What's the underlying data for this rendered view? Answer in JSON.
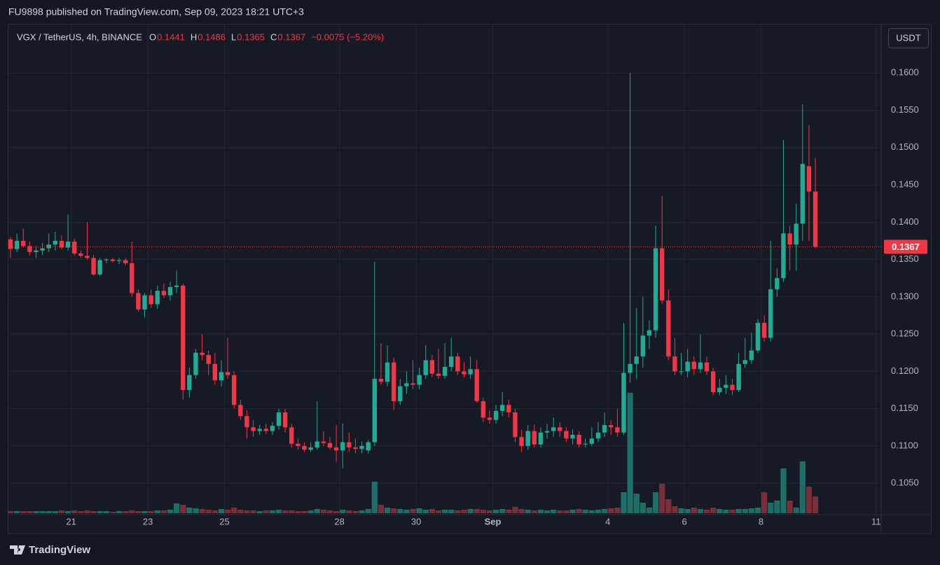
{
  "header": {
    "text": "FU9898 published on TradingView.com, Sep 09, 2023 18:21 UTC+3"
  },
  "chart_data": {
    "type": "candlestick",
    "title": "VGX / TetherUS, 4h, BINANCE",
    "ohlc_labels": [
      "O",
      "H",
      "L",
      "C"
    ],
    "change_label": "−0.0075 (−5.20%)",
    "currency": "USDT",
    "ohlc": [
      [
        0.1377,
        0.138,
        0.1352,
        0.1364
      ],
      [
        0.1364,
        0.1385,
        0.136,
        0.1375
      ],
      [
        0.1375,
        0.1392,
        0.1366,
        0.1368
      ],
      [
        0.1368,
        0.1374,
        0.1355,
        0.136
      ],
      [
        0.136,
        0.1368,
        0.1352,
        0.1362
      ],
      [
        0.1362,
        0.1372,
        0.1356,
        0.1365
      ],
      [
        0.1365,
        0.1385,
        0.136,
        0.137
      ],
      [
        0.137,
        0.1387,
        0.1362,
        0.1375
      ],
      [
        0.1375,
        0.1382,
        0.1364,
        0.1366
      ],
      [
        0.1366,
        0.141,
        0.1362,
        0.1374
      ],
      [
        0.1374,
        0.1378,
        0.1355,
        0.1358
      ],
      [
        0.1358,
        0.1362,
        0.1352,
        0.1355
      ],
      [
        0.1355,
        0.14,
        0.135,
        0.1352
      ],
      [
        0.1352,
        0.1356,
        0.1328,
        0.133
      ],
      [
        0.133,
        0.1352,
        0.1328,
        0.1349
      ],
      [
        0.1349,
        0.1352,
        0.1345,
        0.135
      ],
      [
        0.135,
        0.1352,
        0.1346,
        0.1348
      ],
      [
        0.1348,
        0.1352,
        0.1344,
        0.1349
      ],
      [
        0.1349,
        0.1352,
        0.1342,
        0.1345
      ],
      [
        0.1345,
        0.1374,
        0.13,
        0.1305
      ],
      [
        0.1305,
        0.131,
        0.128,
        0.1283
      ],
      [
        0.1283,
        0.1305,
        0.1272,
        0.1302
      ],
      [
        0.1302,
        0.131,
        0.1285,
        0.129
      ],
      [
        0.129,
        0.1315,
        0.1284,
        0.1308
      ],
      [
        0.1308,
        0.1318,
        0.1298,
        0.1302
      ],
      [
        0.1302,
        0.132,
        0.1295,
        0.1313
      ],
      [
        0.1313,
        0.1335,
        0.1305,
        0.1315
      ],
      [
        0.1315,
        0.1318,
        0.1162,
        0.1175
      ],
      [
        0.1175,
        0.1205,
        0.1165,
        0.1195
      ],
      [
        0.1195,
        0.123,
        0.119,
        0.1225
      ],
      [
        0.1225,
        0.125,
        0.1215,
        0.1222
      ],
      [
        0.1222,
        0.1228,
        0.1195,
        0.121
      ],
      [
        0.121,
        0.1225,
        0.1182,
        0.1188
      ],
      [
        0.1188,
        0.1215,
        0.118,
        0.1199
      ],
      [
        0.1199,
        0.1245,
        0.119,
        0.1195
      ],
      [
        0.1195,
        0.12,
        0.115,
        0.1155
      ],
      [
        0.1155,
        0.1162,
        0.1135,
        0.114
      ],
      [
        0.114,
        0.1148,
        0.111,
        0.1125
      ],
      [
        0.1125,
        0.1135,
        0.1112,
        0.112
      ],
      [
        0.112,
        0.1128,
        0.1115,
        0.1123
      ],
      [
        0.1123,
        0.113,
        0.1116,
        0.112
      ],
      [
        0.112,
        0.1132,
        0.1115,
        0.1127
      ],
      [
        0.1127,
        0.115,
        0.1122,
        0.1145
      ],
      [
        0.1145,
        0.115,
        0.1118,
        0.1125
      ],
      [
        0.1125,
        0.113,
        0.1098,
        0.1103
      ],
      [
        0.1103,
        0.111,
        0.1095,
        0.11
      ],
      [
        0.11,
        0.1105,
        0.1092,
        0.1095
      ],
      [
        0.1095,
        0.1105,
        0.1092,
        0.1098
      ],
      [
        0.1098,
        0.116,
        0.1095,
        0.1106
      ],
      [
        0.1106,
        0.112,
        0.11,
        0.1104
      ],
      [
        0.1104,
        0.1112,
        0.1095,
        0.1098
      ],
      [
        0.1098,
        0.1128,
        0.1078,
        0.1094
      ],
      [
        0.1094,
        0.113,
        0.107,
        0.1105
      ],
      [
        0.1105,
        0.1118,
        0.1092,
        0.1098
      ],
      [
        0.1098,
        0.111,
        0.109,
        0.1096
      ],
      [
        0.1096,
        0.1106,
        0.109,
        0.11
      ],
      [
        0.1094,
        0.1108,
        0.109,
        0.1105
      ],
      [
        0.1105,
        0.1347,
        0.11,
        0.119
      ],
      [
        0.119,
        0.1238,
        0.1182,
        0.1186
      ],
      [
        0.1186,
        0.1235,
        0.118,
        0.1212
      ],
      [
        0.1212,
        0.1218,
        0.1148,
        0.116
      ],
      [
        0.116,
        0.119,
        0.1155,
        0.118
      ],
      [
        0.118,
        0.12,
        0.117,
        0.1184
      ],
      [
        0.1184,
        0.1215,
        0.1176,
        0.1182
      ],
      [
        0.1182,
        0.1205,
        0.1176,
        0.1195
      ],
      [
        0.1195,
        0.1235,
        0.119,
        0.1215
      ],
      [
        0.1215,
        0.1222,
        0.1192,
        0.1197
      ],
      [
        0.1197,
        0.123,
        0.119,
        0.1194
      ],
      [
        0.1194,
        0.1238,
        0.119,
        0.1206
      ],
      [
        0.1206,
        0.1245,
        0.12,
        0.122
      ],
      [
        0.122,
        0.1225,
        0.1195,
        0.12
      ],
      [
        0.12,
        0.1212,
        0.1192,
        0.1196
      ],
      [
        0.1196,
        0.122,
        0.119,
        0.1203
      ],
      [
        0.1203,
        0.1215,
        0.1158,
        0.116
      ],
      [
        0.116,
        0.1165,
        0.1132,
        0.1138
      ],
      [
        0.1138,
        0.1148,
        0.113,
        0.1135
      ],
      [
        0.1135,
        0.1155,
        0.113,
        0.1147
      ],
      [
        0.1147,
        0.1172,
        0.114,
        0.1155
      ],
      [
        0.1155,
        0.1162,
        0.1138,
        0.1145
      ],
      [
        0.1145,
        0.115,
        0.1105,
        0.1112
      ],
      [
        0.1112,
        0.1122,
        0.1092,
        0.11
      ],
      [
        0.11,
        0.1128,
        0.1095,
        0.112
      ],
      [
        0.112,
        0.1128,
        0.1098,
        0.1102
      ],
      [
        0.1102,
        0.1125,
        0.1098,
        0.1118
      ],
      [
        0.1118,
        0.113,
        0.111,
        0.112
      ],
      [
        0.112,
        0.1138,
        0.1112,
        0.1125
      ],
      [
        0.1125,
        0.1132,
        0.1112,
        0.112
      ],
      [
        0.112,
        0.1125,
        0.1105,
        0.111
      ],
      [
        0.111,
        0.1122,
        0.1102,
        0.1115
      ],
      [
        0.1115,
        0.112,
        0.1098,
        0.1102
      ],
      [
        0.1102,
        0.111,
        0.1098,
        0.1103
      ],
      [
        0.1103,
        0.1125,
        0.11,
        0.111
      ],
      [
        0.111,
        0.1132,
        0.1105,
        0.1118
      ],
      [
        0.1118,
        0.1145,
        0.1112,
        0.1128
      ],
      [
        0.1128,
        0.1135,
        0.1115,
        0.1125
      ],
      [
        0.1125,
        0.115,
        0.1112,
        0.1118
      ],
      [
        0.1118,
        0.1265,
        0.1115,
        0.1198
      ],
      [
        0.1198,
        0.16,
        0.1185,
        0.121
      ],
      [
        0.121,
        0.1285,
        0.119,
        0.122
      ],
      [
        0.122,
        0.13,
        0.1205,
        0.1248
      ],
      [
        0.1248,
        0.1268,
        0.123,
        0.1255
      ],
      [
        0.1255,
        0.1395,
        0.1245,
        0.1365
      ],
      [
        0.1365,
        0.1435,
        0.129,
        0.1295
      ],
      [
        0.1295,
        0.131,
        0.1215,
        0.122
      ],
      [
        0.122,
        0.1245,
        0.1195,
        0.12
      ],
      [
        0.12,
        0.1225,
        0.1195,
        0.12
      ],
      [
        0.12,
        0.123,
        0.1192,
        0.1213
      ],
      [
        0.1213,
        0.122,
        0.1195,
        0.1203
      ],
      [
        0.1203,
        0.125,
        0.1198,
        0.1212
      ],
      [
        0.1212,
        0.122,
        0.1195,
        0.12
      ],
      [
        0.12,
        0.1205,
        0.1168,
        0.1172
      ],
      [
        0.1172,
        0.119,
        0.1168,
        0.1178
      ],
      [
        0.1178,
        0.1195,
        0.117,
        0.1182
      ],
      [
        0.1182,
        0.119,
        0.1168,
        0.1175
      ],
      [
        0.1175,
        0.1225,
        0.1172,
        0.121
      ],
      [
        0.121,
        0.1245,
        0.1205,
        0.1215
      ],
      [
        0.1215,
        0.1252,
        0.121,
        0.1228
      ],
      [
        0.1228,
        0.127,
        0.1225,
        0.1265
      ],
      [
        0.1265,
        0.1275,
        0.124,
        0.1245
      ],
      [
        0.1245,
        0.1375,
        0.124,
        0.131
      ],
      [
        0.131,
        0.1338,
        0.13,
        0.1325
      ],
      [
        0.1325,
        0.151,
        0.132,
        0.1385
      ],
      [
        0.1385,
        0.1395,
        0.1335,
        0.137
      ],
      [
        0.137,
        0.1425,
        0.1335,
        0.1398
      ],
      [
        0.1398,
        0.1558,
        0.1375,
        0.1478
      ],
      [
        0.1475,
        0.153,
        0.1375,
        0.1441
      ],
      [
        0.1441,
        0.1486,
        0.1365,
        0.1367
      ]
    ],
    "volume": [
      3,
      3,
      3,
      3,
      3,
      3,
      3,
      3,
      4,
      3,
      4,
      3,
      4,
      3,
      3,
      3,
      2,
      3,
      3,
      4,
      3,
      3,
      3,
      4,
      4,
      5,
      14,
      12,
      8,
      7,
      6,
      5,
      4,
      6,
      5,
      8,
      5,
      4,
      4,
      3,
      4,
      4,
      5,
      4,
      4,
      3,
      3,
      4,
      6,
      5,
      4,
      3,
      5,
      4,
      3,
      4,
      6,
      45,
      12,
      8,
      7,
      6,
      5,
      6,
      7,
      5,
      6,
      4,
      5,
      5,
      4,
      5,
      6,
      6,
      5,
      4,
      5,
      6,
      5,
      9,
      6,
      5,
      4,
      5,
      4,
      5,
      4,
      4,
      5,
      6,
      5,
      4,
      5,
      6,
      7,
      8,
      30,
      172,
      28,
      15,
      8,
      30,
      42,
      20,
      10,
      7,
      6,
      8,
      6,
      5,
      8,
      6,
      5,
      5,
      6,
      6,
      7,
      8,
      30,
      15,
      18,
      64,
      18,
      8,
      74,
      38,
      24
    ],
    "volume_lim": [
      0,
      700
    ],
    "xlim": [
      -0.33,
      136.3
    ],
    "xticks": [
      {
        "value": 9.5,
        "label": "21"
      },
      {
        "value": 21.5,
        "label": "23"
      },
      {
        "value": 33.5,
        "label": "25"
      },
      {
        "value": 51.5,
        "label": "28"
      },
      {
        "value": 63.5,
        "label": "30"
      },
      {
        "value": 75.5,
        "label": "Sep"
      },
      {
        "value": 93.5,
        "label": "4"
      },
      {
        "value": 105.5,
        "label": "6"
      },
      {
        "value": 117.5,
        "label": "8"
      },
      {
        "value": 135.5,
        "label": "11"
      }
    ],
    "ylim": [
      0.1008,
      0.1665
    ],
    "yticks": [
      {
        "value": 0.105,
        "label": "0.1050"
      },
      {
        "value": 0.11,
        "label": "0.1100"
      },
      {
        "value": 0.115,
        "label": "0.1150"
      },
      {
        "value": 0.12,
        "label": "0.1200"
      },
      {
        "value": 0.125,
        "label": "0.1250"
      },
      {
        "value": 0.13,
        "label": "0.1300"
      },
      {
        "value": 0.135,
        "label": "0.1350"
      },
      {
        "value": 0.14,
        "label": "0.1400"
      },
      {
        "value": 0.145,
        "label": "0.1450"
      },
      {
        "value": 0.15,
        "label": "0.1500"
      },
      {
        "value": 0.155,
        "label": "0.1550"
      },
      {
        "value": 0.16,
        "label": "0.1600"
      }
    ],
    "grid": true,
    "last_price_line": true,
    "up_color": "#22ab94",
    "down_color": "#f23645",
    "volume_up_color": "#1d6e66",
    "volume_down_color": "#7a2f38"
  },
  "footer": {
    "brand": "TradingView"
  }
}
